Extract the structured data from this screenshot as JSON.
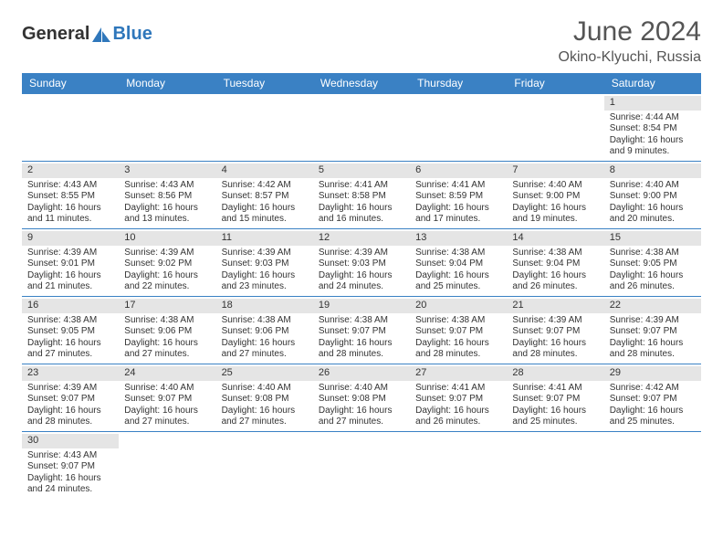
{
  "logo": {
    "text1": "General",
    "text2": "Blue"
  },
  "title": "June 2024",
  "location": "Okino-Klyuchi, Russia",
  "colors": {
    "header_bg": "#3a81c4",
    "header_text": "#ffffff",
    "band_bg": "#e5e5e5",
    "border": "#3a81c4",
    "logo_accent": "#2f77bb",
    "body_text": "#333333"
  },
  "dow": [
    "Sunday",
    "Monday",
    "Tuesday",
    "Wednesday",
    "Thursday",
    "Friday",
    "Saturday"
  ],
  "weeks": [
    [
      null,
      null,
      null,
      null,
      null,
      null,
      {
        "d": "1",
        "sr": "4:44 AM",
        "ss": "8:54 PM",
        "dl": "16 hours and 9 minutes."
      }
    ],
    [
      {
        "d": "2",
        "sr": "4:43 AM",
        "ss": "8:55 PM",
        "dl": "16 hours and 11 minutes."
      },
      {
        "d": "3",
        "sr": "4:43 AM",
        "ss": "8:56 PM",
        "dl": "16 hours and 13 minutes."
      },
      {
        "d": "4",
        "sr": "4:42 AM",
        "ss": "8:57 PM",
        "dl": "16 hours and 15 minutes."
      },
      {
        "d": "5",
        "sr": "4:41 AM",
        "ss": "8:58 PM",
        "dl": "16 hours and 16 minutes."
      },
      {
        "d": "6",
        "sr": "4:41 AM",
        "ss": "8:59 PM",
        "dl": "16 hours and 17 minutes."
      },
      {
        "d": "7",
        "sr": "4:40 AM",
        "ss": "9:00 PM",
        "dl": "16 hours and 19 minutes."
      },
      {
        "d": "8",
        "sr": "4:40 AM",
        "ss": "9:00 PM",
        "dl": "16 hours and 20 minutes."
      }
    ],
    [
      {
        "d": "9",
        "sr": "4:39 AM",
        "ss": "9:01 PM",
        "dl": "16 hours and 21 minutes."
      },
      {
        "d": "10",
        "sr": "4:39 AM",
        "ss": "9:02 PM",
        "dl": "16 hours and 22 minutes."
      },
      {
        "d": "11",
        "sr": "4:39 AM",
        "ss": "9:03 PM",
        "dl": "16 hours and 23 minutes."
      },
      {
        "d": "12",
        "sr": "4:39 AM",
        "ss": "9:03 PM",
        "dl": "16 hours and 24 minutes."
      },
      {
        "d": "13",
        "sr": "4:38 AM",
        "ss": "9:04 PM",
        "dl": "16 hours and 25 minutes."
      },
      {
        "d": "14",
        "sr": "4:38 AM",
        "ss": "9:04 PM",
        "dl": "16 hours and 26 minutes."
      },
      {
        "d": "15",
        "sr": "4:38 AM",
        "ss": "9:05 PM",
        "dl": "16 hours and 26 minutes."
      }
    ],
    [
      {
        "d": "16",
        "sr": "4:38 AM",
        "ss": "9:05 PM",
        "dl": "16 hours and 27 minutes."
      },
      {
        "d": "17",
        "sr": "4:38 AM",
        "ss": "9:06 PM",
        "dl": "16 hours and 27 minutes."
      },
      {
        "d": "18",
        "sr": "4:38 AM",
        "ss": "9:06 PM",
        "dl": "16 hours and 27 minutes."
      },
      {
        "d": "19",
        "sr": "4:38 AM",
        "ss": "9:07 PM",
        "dl": "16 hours and 28 minutes."
      },
      {
        "d": "20",
        "sr": "4:38 AM",
        "ss": "9:07 PM",
        "dl": "16 hours and 28 minutes."
      },
      {
        "d": "21",
        "sr": "4:39 AM",
        "ss": "9:07 PM",
        "dl": "16 hours and 28 minutes."
      },
      {
        "d": "22",
        "sr": "4:39 AM",
        "ss": "9:07 PM",
        "dl": "16 hours and 28 minutes."
      }
    ],
    [
      {
        "d": "23",
        "sr": "4:39 AM",
        "ss": "9:07 PM",
        "dl": "16 hours and 28 minutes."
      },
      {
        "d": "24",
        "sr": "4:40 AM",
        "ss": "9:07 PM",
        "dl": "16 hours and 27 minutes."
      },
      {
        "d": "25",
        "sr": "4:40 AM",
        "ss": "9:08 PM",
        "dl": "16 hours and 27 minutes."
      },
      {
        "d": "26",
        "sr": "4:40 AM",
        "ss": "9:08 PM",
        "dl": "16 hours and 27 minutes."
      },
      {
        "d": "27",
        "sr": "4:41 AM",
        "ss": "9:07 PM",
        "dl": "16 hours and 26 minutes."
      },
      {
        "d": "28",
        "sr": "4:41 AM",
        "ss": "9:07 PM",
        "dl": "16 hours and 25 minutes."
      },
      {
        "d": "29",
        "sr": "4:42 AM",
        "ss": "9:07 PM",
        "dl": "16 hours and 25 minutes."
      }
    ],
    [
      {
        "d": "30",
        "sr": "4:43 AM",
        "ss": "9:07 PM",
        "dl": "16 hours and 24 minutes."
      },
      null,
      null,
      null,
      null,
      null,
      null
    ]
  ],
  "labels": {
    "sunrise": "Sunrise:",
    "sunset": "Sunset:",
    "daylight": "Daylight:"
  }
}
